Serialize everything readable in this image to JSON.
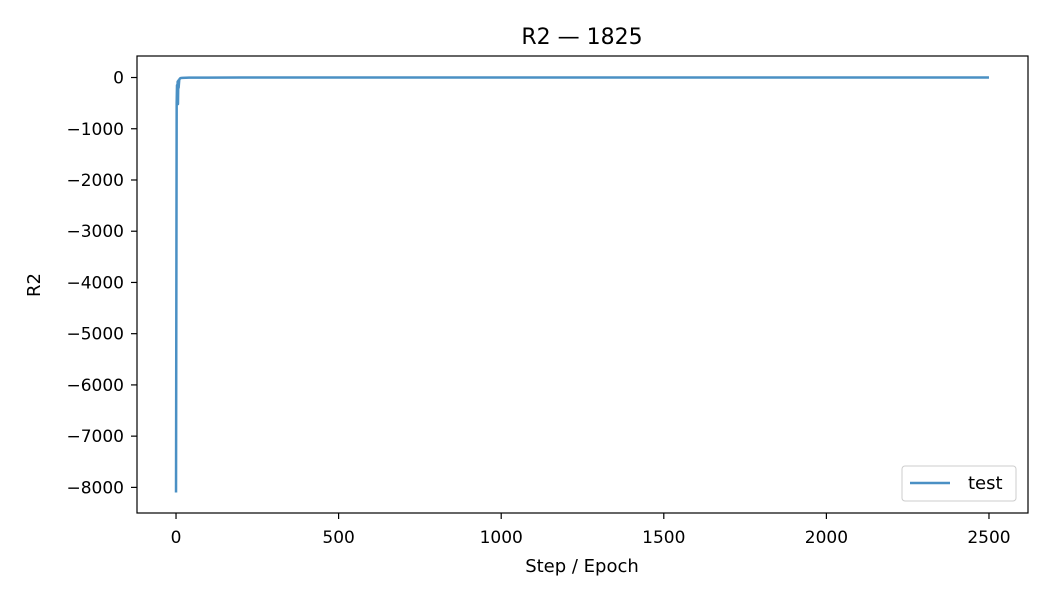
{
  "chart_data": {
    "type": "line",
    "title": "R2 — 1825",
    "xlabel": "Step / Epoch",
    "ylabel": "R2",
    "xlim": [
      -120,
      2620
    ],
    "ylim": [
      -8500,
      420
    ],
    "x_ticks": [
      0,
      500,
      1000,
      1500,
      2000,
      2500
    ],
    "x_tick_labels": [
      "0",
      "500",
      "1000",
      "1500",
      "2000",
      "2500"
    ],
    "y_ticks": [
      0,
      -1000,
      -2000,
      -3000,
      -4000,
      -5000,
      -6000,
      -7000,
      -8000
    ],
    "y_tick_labels": [
      "0",
      "−1000",
      "−2000",
      "−3000",
      "−4000",
      "−5000",
      "−6000",
      "−7000",
      "−8000"
    ],
    "grid": false,
    "legend_position": "lower-right",
    "series": [
      {
        "name": "test",
        "color": "#4a90c4",
        "x": [
          0,
          2,
          3,
          4,
          5,
          6,
          7,
          8,
          10,
          12,
          15,
          20,
          30,
          40,
          60,
          100,
          200,
          500,
          1000,
          1500,
          2000,
          2500
        ],
        "y": [
          -8100,
          -500,
          -150,
          -450,
          -80,
          -520,
          -60,
          -200,
          -40,
          -20,
          -10,
          -8,
          -5,
          -3,
          -2,
          -1,
          -0.5,
          -0.2,
          -0.1,
          -0.05,
          -0.03,
          -0.02
        ]
      }
    ]
  }
}
